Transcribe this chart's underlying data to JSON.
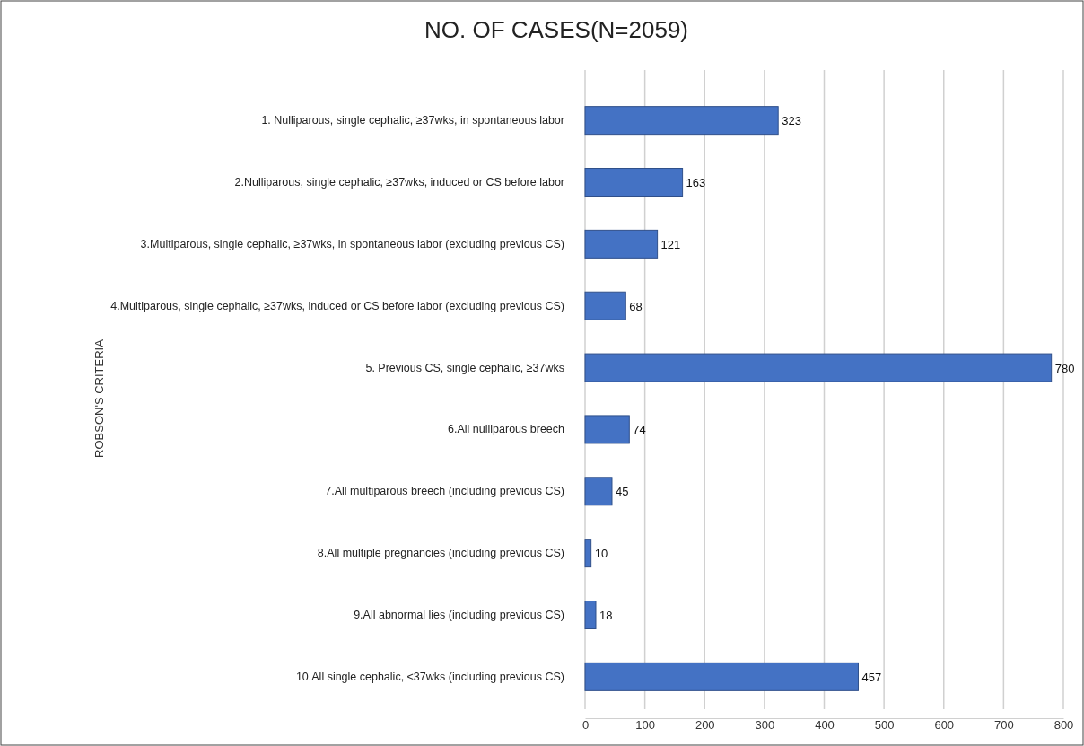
{
  "chart_data": {
    "type": "bar",
    "orientation": "horizontal",
    "title": "NO. OF CASES(N=2059)",
    "ylabel": "ROBSON'S CRITERIA",
    "categories": [
      "1. Nulliparous, single cephalic, ≥37wks, in spontaneous labor",
      "2.Nulliparous, single cephalic, ≥37wks, induced or CS before labor",
      "3.Multiparous, single cephalic, ≥37wks, in spontaneous labor (excluding previous CS)",
      "4.Multiparous, single cephalic, ≥37wks, induced or CS before labor (excluding previous CS)",
      "5. Previous CS, single cephalic, ≥37wks",
      "6.All nulliparous breech",
      "7.All multiparous breech (including previous CS)",
      "8.All multiple pregnancies (including previous CS)",
      "9.All abnormal lies (including previous CS)",
      "10.All single cephalic, <37wks (including previous CS)"
    ],
    "values": [
      323,
      163,
      121,
      68,
      780,
      74,
      45,
      10,
      18,
      457
    ],
    "color": "#4472c4",
    "xlim": [
      0,
      800
    ],
    "xticks": [
      0,
      100,
      200,
      300,
      400,
      500,
      600,
      700,
      800
    ],
    "grid": "x",
    "data_labels": true
  }
}
